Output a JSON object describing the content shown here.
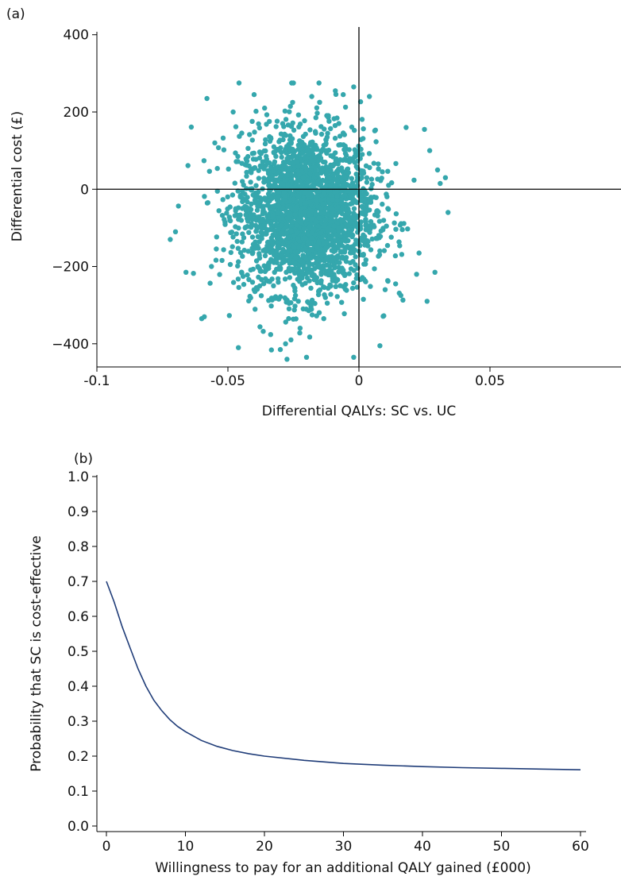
{
  "panels": {
    "a_label": "(a)",
    "b_label": "(b)"
  },
  "colors": {
    "scatter": "#35a7ad",
    "curve": "#1f3c78",
    "axis": "#000000"
  },
  "chart_data": [
    {
      "type": "scatter",
      "panel": "(a)",
      "xlabel": "Differential QALYs: SC vs. UC",
      "ylabel": "Differential cost (£)",
      "xlim": [
        -0.1,
        0.1
      ],
      "ylim": [
        -460,
        420
      ],
      "xticks": [
        -0.1,
        -0.05,
        0,
        0.05
      ],
      "xtick_labels": [
        "-0.1",
        "-0.05",
        "0",
        "0.05"
      ],
      "yticks": [
        400,
        200,
        0,
        -200,
        -400
      ],
      "ytick_labels": [
        "400",
        "200",
        "0",
        "−200",
        "−400"
      ],
      "reference_lines": {
        "x": 0,
        "y": 0
      },
      "cloud": {
        "center_x": -0.02,
        "center_y": -60,
        "sd_x": 0.013,
        "sd_y": 105,
        "n_points": 2500
      },
      "points": [
        {
          "x": -0.072,
          "y": -130
        },
        {
          "x": -0.07,
          "y": -110
        },
        {
          "x": -0.066,
          "y": -215
        },
        {
          "x": -0.06,
          "y": -335
        },
        {
          "x": -0.059,
          "y": -330
        },
        {
          "x": -0.058,
          "y": 235
        },
        {
          "x": -0.055,
          "y": 120
        },
        {
          "x": -0.048,
          "y": 200
        },
        {
          "x": -0.046,
          "y": -410
        },
        {
          "x": -0.04,
          "y": 245
        },
        {
          "x": -0.036,
          "y": 210
        },
        {
          "x": -0.03,
          "y": -415
        },
        {
          "x": -0.028,
          "y": -400
        },
        {
          "x": -0.025,
          "y": 275
        },
        {
          "x": -0.02,
          "y": -435
        },
        {
          "x": -0.018,
          "y": 240
        },
        {
          "x": -0.015,
          "y": 225
        },
        {
          "x": -0.009,
          "y": 255
        },
        {
          "x": -0.006,
          "y": 245
        },
        {
          "x": -0.002,
          "y": 265
        },
        {
          "x": -0.002,
          "y": -435
        },
        {
          "x": 0.004,
          "y": 240
        },
        {
          "x": 0.008,
          "y": -405
        },
        {
          "x": 0.01,
          "y": -260
        },
        {
          "x": 0.014,
          "y": -245
        },
        {
          "x": 0.016,
          "y": -275
        },
        {
          "x": 0.018,
          "y": 160
        },
        {
          "x": 0.022,
          "y": -220
        },
        {
          "x": 0.025,
          "y": 155
        },
        {
          "x": 0.026,
          "y": -290
        },
        {
          "x": 0.029,
          "y": -215
        },
        {
          "x": 0.03,
          "y": 50
        },
        {
          "x": 0.031,
          "y": 15
        },
        {
          "x": 0.033,
          "y": 30
        },
        {
          "x": 0.034,
          "y": -60
        },
        {
          "x": 0.027,
          "y": 100
        }
      ]
    },
    {
      "type": "line",
      "panel": "(b)",
      "xlabel": "Willingness to pay for an additional QALY gained (£000)",
      "ylabel": "Probability that SC is cost-effective",
      "xlim": [
        0,
        60
      ],
      "ylim": [
        0,
        1
      ],
      "xticks": [
        0,
        10,
        20,
        30,
        40,
        50,
        60
      ],
      "xtick_labels": [
        "0",
        "10",
        "20",
        "30",
        "40",
        "50",
        "60"
      ],
      "yticks": [
        0,
        0.1,
        0.2,
        0.3,
        0.4,
        0.5,
        0.6,
        0.7,
        0.8,
        0.9,
        1.0
      ],
      "ytick_labels": [
        "0.0",
        "0.1",
        "0.2",
        "0.3",
        "0.4",
        "0.5",
        "0.6",
        "0.7",
        "0.8",
        "0.9",
        "1.0"
      ],
      "series": [
        {
          "x": [
            0,
            1,
            2,
            3,
            4,
            5,
            6,
            7,
            8,
            9,
            10,
            12,
            14,
            16,
            18,
            20,
            25,
            30,
            35,
            40,
            45,
            50,
            55,
            60
          ],
          "y": [
            0.7,
            0.64,
            0.57,
            0.51,
            0.45,
            0.4,
            0.36,
            0.33,
            0.305,
            0.285,
            0.27,
            0.245,
            0.228,
            0.216,
            0.207,
            0.2,
            0.188,
            0.179,
            0.174,
            0.17,
            0.167,
            0.165,
            0.163,
            0.161
          ]
        }
      ]
    }
  ]
}
